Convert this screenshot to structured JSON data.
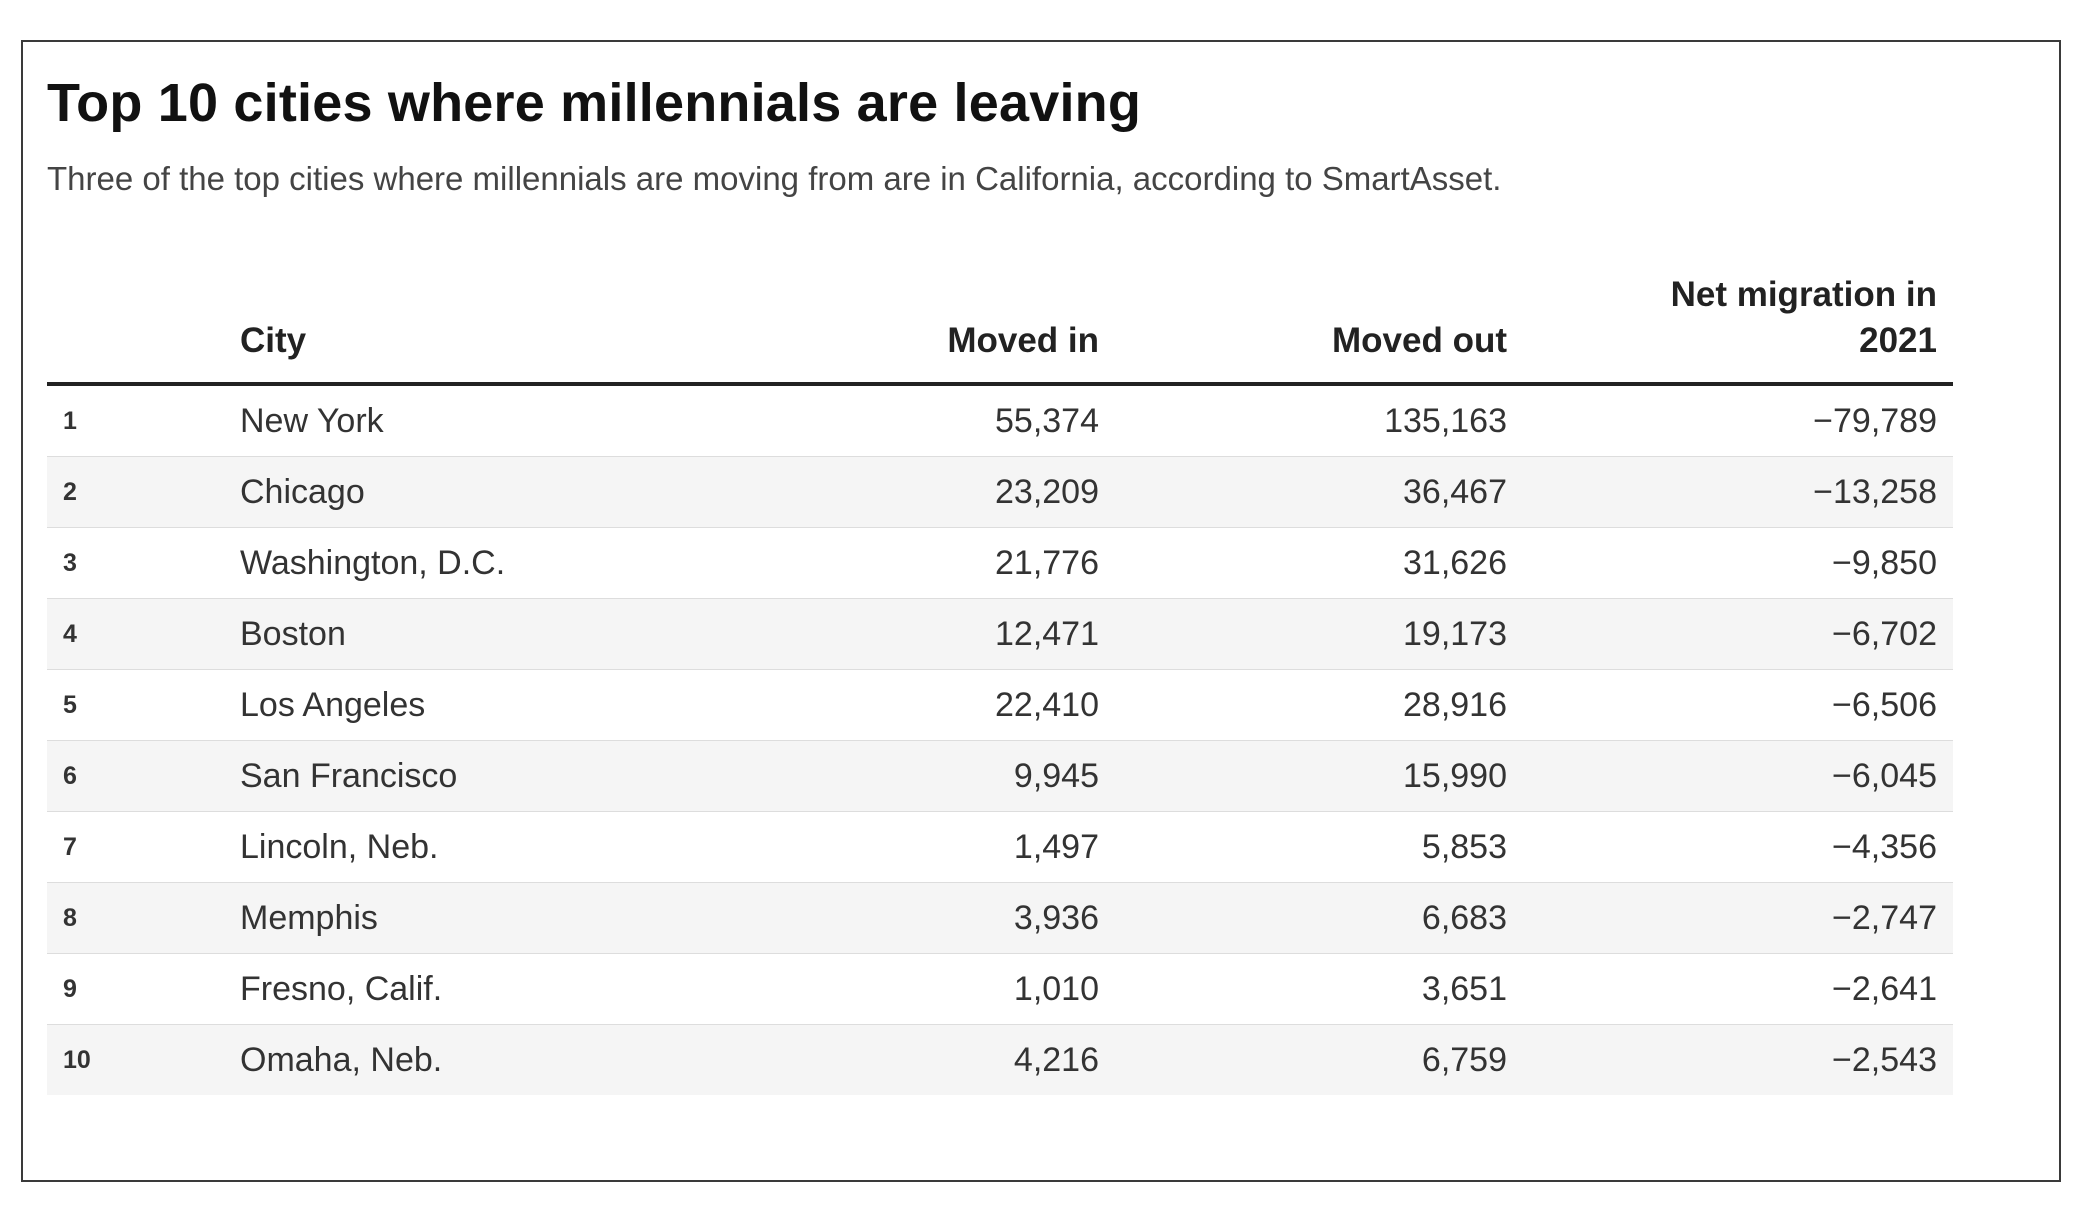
{
  "title": "Top 10 cities where millennials are leaving",
  "subtitle": "Three of the top cities where millennials are moving from are in California, according to SmartAsset.",
  "chart_data": {
    "type": "table",
    "title": "Top 10 cities where millennials are leaving",
    "subtitle": "Three of the top cities where millennials are moving from are in California, according to SmartAsset.",
    "columns": [
      "",
      "City",
      "Moved in",
      "Moved out",
      "Net migration in 2021"
    ],
    "rows": [
      {
        "rank": "1",
        "city": "New York",
        "moved_in": "55,374",
        "moved_out": "135,163",
        "net": "−79,789"
      },
      {
        "rank": "2",
        "city": "Chicago",
        "moved_in": "23,209",
        "moved_out": "36,467",
        "net": "−13,258"
      },
      {
        "rank": "3",
        "city": "Washington, D.C.",
        "moved_in": "21,776",
        "moved_out": "31,626",
        "net": "−9,850"
      },
      {
        "rank": "4",
        "city": "Boston",
        "moved_in": "12,471",
        "moved_out": "19,173",
        "net": "−6,702"
      },
      {
        "rank": "5",
        "city": "Los Angeles",
        "moved_in": "22,410",
        "moved_out": "28,916",
        "net": "−6,506"
      },
      {
        "rank": "6",
        "city": "San Francisco",
        "moved_in": "9,945",
        "moved_out": "15,990",
        "net": "−6,045"
      },
      {
        "rank": "7",
        "city": "Lincoln, Neb.",
        "moved_in": "1,497",
        "moved_out": "5,853",
        "net": "−4,356"
      },
      {
        "rank": "8",
        "city": "Memphis",
        "moved_in": "3,936",
        "moved_out": "6,683",
        "net": "−2,747"
      },
      {
        "rank": "9",
        "city": "Fresno, Calif.",
        "moved_in": "1,010",
        "moved_out": "3,651",
        "net": "−2,641"
      },
      {
        "rank": "10",
        "city": "Omaha, Neb.",
        "moved_in": "4,216",
        "moved_out": "6,759",
        "net": "−2,543"
      }
    ]
  }
}
